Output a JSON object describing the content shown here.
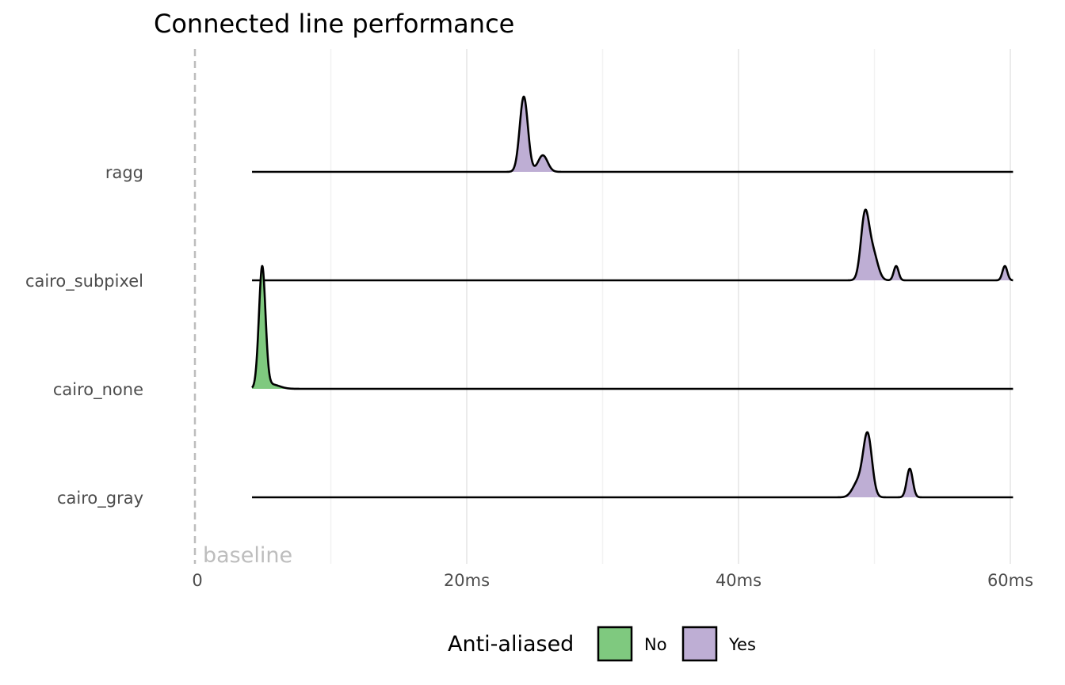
{
  "chart_data": {
    "type": "ridgeline",
    "title": "Connected line performance",
    "xlabel": "",
    "ylabel": "",
    "x_unit": "ms",
    "xlim": [
      0,
      60.2
    ],
    "x_ticks": [
      {
        "value": 0,
        "label": "0"
      },
      {
        "value": 20,
        "label": "20ms"
      },
      {
        "value": 40,
        "label": "40ms"
      },
      {
        "value": 60,
        "label": "60ms"
      }
    ],
    "x_minor_gridlines": [
      10,
      30,
      50
    ],
    "grid": true,
    "reference_line": {
      "x": 0,
      "style": "dashed",
      "label": "baseline",
      "color": "#bdbdbd"
    },
    "categories": [
      "ragg",
      "cairo_subpixel",
      "cairo_none",
      "cairo_gray"
    ],
    "series": [
      {
        "category": "ragg",
        "anti_aliased": "Yes",
        "x_range": [
          4.2,
          60.2
        ],
        "peaks": [
          {
            "x": 24.2,
            "sd": 0.3,
            "height": 1.0
          },
          {
            "x": 25.6,
            "sd": 0.35,
            "height": 0.22
          }
        ]
      },
      {
        "category": "cairo_subpixel",
        "anti_aliased": "Yes",
        "x_range": [
          4.2,
          60.2
        ],
        "peaks": [
          {
            "x": 49.3,
            "sd": 0.3,
            "height": 0.85
          },
          {
            "x": 49.9,
            "sd": 0.35,
            "height": 0.35
          },
          {
            "x": 51.6,
            "sd": 0.18,
            "height": 0.19
          },
          {
            "x": 59.6,
            "sd": 0.18,
            "height": 0.19
          }
        ]
      },
      {
        "category": "cairo_none",
        "anti_aliased": "No",
        "x_range": [
          4.2,
          60.2
        ],
        "peaks": [
          {
            "x": 4.95,
            "sd": 0.24,
            "height": 1.6
          },
          {
            "x": 5.6,
            "sd": 0.6,
            "height": 0.06
          }
        ]
      },
      {
        "category": "cairo_gray",
        "anti_aliased": "Yes",
        "x_range": [
          4.2,
          60.2
        ],
        "peaks": [
          {
            "x": 49.5,
            "sd": 0.32,
            "height": 0.82
          },
          {
            "x": 48.8,
            "sd": 0.4,
            "height": 0.2
          },
          {
            "x": 52.6,
            "sd": 0.22,
            "height": 0.38
          }
        ]
      }
    ],
    "fill_colors": {
      "No": "#7fc97f",
      "Yes": "#beaed4"
    },
    "legend": {
      "title": "Anti-aliased",
      "position": "bottom",
      "items": [
        {
          "label": "No",
          "color": "#7fc97f"
        },
        {
          "label": "Yes",
          "color": "#beaed4"
        }
      ]
    }
  }
}
